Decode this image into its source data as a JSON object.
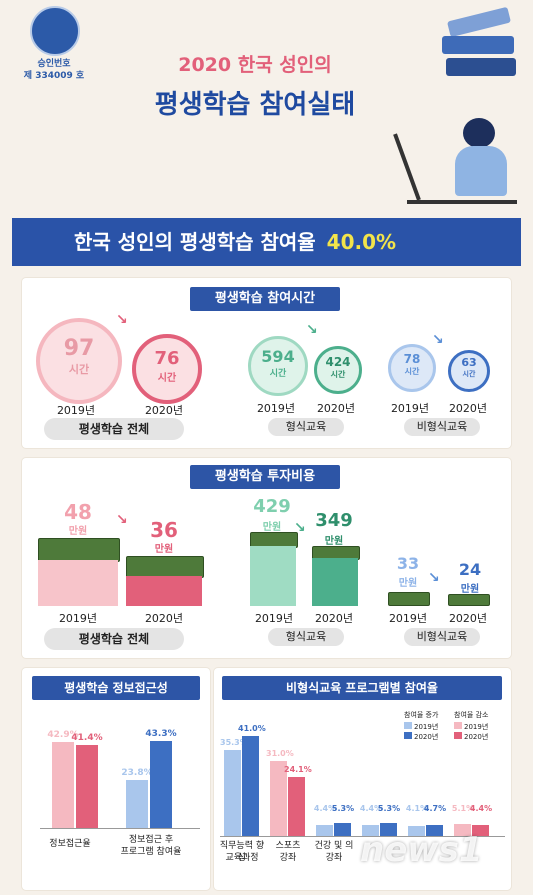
{
  "seal": {
    "line1": "승인번호",
    "line2": "제 334009 호"
  },
  "title": {
    "year_line": "2020 한국 성인의",
    "main": "평생학습 참여실태"
  },
  "banner": {
    "text": "한국 성인의 평생학습 참여율",
    "value": "40.0%"
  },
  "hours": {
    "title": "평생학습 참여시간",
    "unit": "시간",
    "year_2019": "2019년",
    "year_2020": "2020년",
    "groups": [
      {
        "label": "평생학습 전체",
        "v2019": "97",
        "v2020": "76"
      },
      {
        "label": "형식교육",
        "v2019": "594",
        "v2020": "424"
      },
      {
        "label": "비형식교육",
        "v2019": "78",
        "v2020": "63"
      }
    ]
  },
  "cost": {
    "title": "평생학습 투자비용",
    "unit": "만원",
    "year_2019": "2019년",
    "year_2020": "2020년",
    "groups": [
      {
        "label": "평생학습 전체",
        "v2019": "48",
        "v2020": "36"
      },
      {
        "label": "형식교육",
        "v2019": "429",
        "v2020": "349"
      },
      {
        "label": "비형식교육",
        "v2019": "33",
        "v2020": "24"
      }
    ]
  },
  "access": {
    "title": "평생학습 정보접근성",
    "bars": [
      {
        "label": "정보접근율",
        "v2019": "42.9%",
        "v2020": "41.4%",
        "n2019": 42.9,
        "n2020": 41.4
      },
      {
        "label_line1": "정보접근 후",
        "label_line2": "프로그램 참여율",
        "v2019": "23.8%",
        "v2020": "43.3%",
        "n2019": 23.8,
        "n2020": 43.3
      }
    ]
  },
  "programs": {
    "title": "비형식교육 프로그램별 참여율",
    "legend": {
      "inc_title": "참여율 증가",
      "dec_title": "참여율 감소",
      "y2019": "2019년",
      "y2020": "2020년"
    },
    "items": [
      {
        "line1": "직무능력 향상",
        "line2": "교육과정",
        "v2019": "35.3%",
        "v2020": "41.0%",
        "n2019": 35.3,
        "n2020": 41.0,
        "trend": "inc"
      },
      {
        "line1": "스포츠",
        "line2": "강좌",
        "v2019": "31.0%",
        "v2020": "24.1%",
        "n2019": 31.0,
        "n2020": 24.1,
        "trend": "dec"
      },
      {
        "line1": "건강 및 의",
        "line2": "강좌",
        "v2019": "4.4%",
        "v2020": "5.3%",
        "n2019": 4.4,
        "n2020": 5.3,
        "trend": "inc"
      },
      {
        "line1": "",
        "line2": "",
        "v2019": "4.4%",
        "v2020": "5.3%",
        "n2019": 4.4,
        "n2020": 5.3,
        "trend": "inc"
      },
      {
        "line1": "",
        "line2": "",
        "v2019": "4.1%",
        "v2020": "4.7%",
        "n2019": 4.1,
        "n2020": 4.7,
        "trend": "inc"
      },
      {
        "line1": "",
        "line2": "",
        "v2019": "5.1%",
        "v2020": "4.4%",
        "n2019": 5.1,
        "n2020": 4.4,
        "trend": "dec"
      }
    ]
  },
  "watermark": "news1",
  "colors": {
    "blue": "#2d55a6",
    "pink": "#e2607a",
    "green": "#4caf8c",
    "lightblue": "#5b8fd6",
    "inc2019": "#a9c6ec",
    "inc2020": "#3d6fc2",
    "dec2019": "#f5b9c1",
    "dec2020": "#e2607a"
  }
}
